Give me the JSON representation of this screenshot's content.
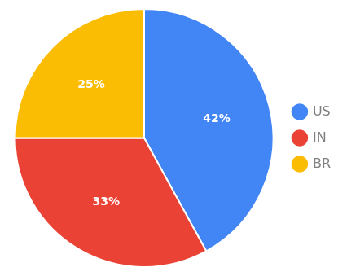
{
  "chart_data": {
    "type": "pie",
    "categories": [
      "US",
      "IN",
      "BR"
    ],
    "values": [
      42,
      33,
      25
    ],
    "value_labels": [
      "42%",
      "33%",
      "25%"
    ],
    "colors": [
      "#4285F4",
      "#EA4335",
      "#FBBC04"
    ],
    "data_labels": true,
    "legend": "right"
  }
}
